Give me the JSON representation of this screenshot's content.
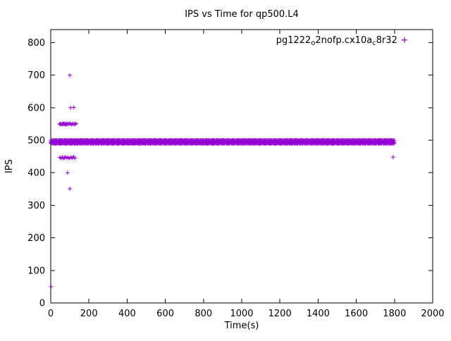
{
  "page": {
    "background": "#ffffff"
  },
  "chart_data": {
    "type": "scatter",
    "title": "IPS vs Time for qp500.L4",
    "xlabel": "Time(s)",
    "ylabel": "IPS",
    "xlim": [
      0,
      2000
    ],
    "ylim": [
      0,
      840
    ],
    "xticks": [
      0,
      200,
      400,
      600,
      800,
      1000,
      1200,
      1400,
      1600,
      1800,
      2000
    ],
    "yticks": [
      0,
      100,
      200,
      300,
      400,
      500,
      600,
      700,
      800
    ],
    "grid": false,
    "marker_color": "#9400d3",
    "marker_style": "plus",
    "legend": {
      "label": "pg1222_o2nofp.cx10a_c8r32",
      "parts": [
        {
          "t": "pg1222"
        },
        {
          "t": "o",
          "sub": true
        },
        {
          "t": "2nofp.cx10a"
        },
        {
          "t": "c",
          "sub": true
        },
        {
          "t": "8r32"
        }
      ],
      "position": "top-right"
    },
    "band": {
      "y_center": 495,
      "y_amplitude": 5,
      "x_start": 2,
      "x_end": 1800,
      "step": 4
    },
    "points": [
      [
        2,
        50
      ],
      [
        45,
        550
      ],
      [
        50,
        549
      ],
      [
        55,
        551
      ],
      [
        59,
        548
      ],
      [
        63,
        550
      ],
      [
        67,
        552
      ],
      [
        71,
        549
      ],
      [
        75,
        551
      ],
      [
        79,
        548
      ],
      [
        83,
        550
      ],
      [
        88,
        551
      ],
      [
        93,
        549
      ],
      [
        99,
        552
      ],
      [
        104,
        550
      ],
      [
        110,
        548
      ],
      [
        116,
        551
      ],
      [
        122,
        549
      ],
      [
        128,
        550
      ],
      [
        133,
        551
      ],
      [
        100,
        700
      ],
      [
        104,
        600
      ],
      [
        121,
        601
      ],
      [
        48,
        447
      ],
      [
        54,
        445
      ],
      [
        60,
        448
      ],
      [
        66,
        444
      ],
      [
        72,
        446
      ],
      [
        78,
        449
      ],
      [
        85,
        445
      ],
      [
        92,
        447
      ],
      [
        99,
        444
      ],
      [
        106,
        448
      ],
      [
        113,
        446
      ],
      [
        120,
        449
      ],
      [
        127,
        445
      ],
      [
        88,
        400
      ],
      [
        100,
        351
      ],
      [
        1793,
        448
      ]
    ]
  }
}
